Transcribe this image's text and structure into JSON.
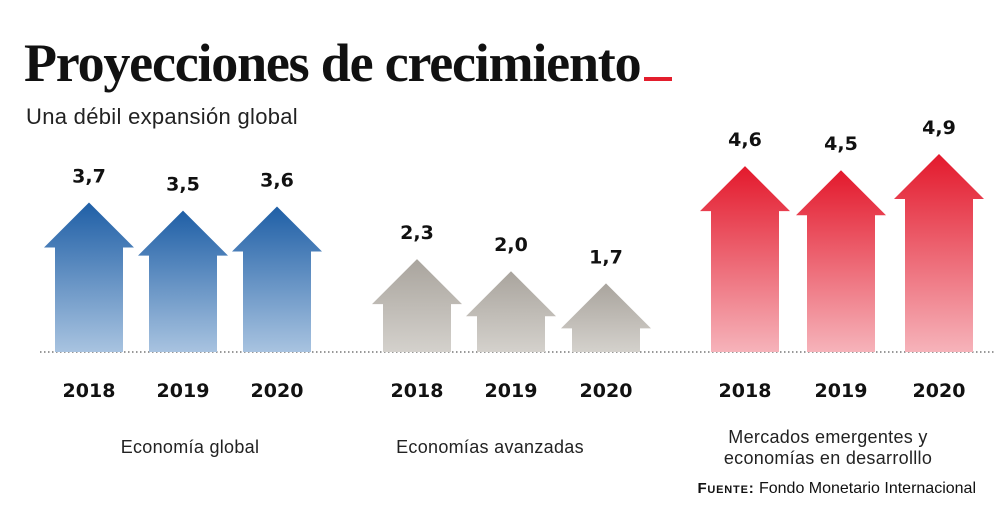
{
  "header": {
    "title": "Proyecciones de crecimiento",
    "subtitle": "Una débil expansión global"
  },
  "source": {
    "label": "Fuente:",
    "text": "Fondo Monetario Internacional"
  },
  "colors": {
    "accent": "#e31e2d",
    "blue_top": "#1f5fa6",
    "blue_bottom": "#a8c3e0",
    "gray_top": "#a9a49d",
    "gray_bottom": "#d4d1cc",
    "red_top": "#e3192c",
    "red_bottom": "#f6b3ba",
    "baseline": "#777777"
  },
  "chart_data": {
    "type": "bar",
    "title": "Proyecciones de crecimiento",
    "subtitle": "Una débil expansión global",
    "xlabel": "",
    "ylabel": "",
    "value_format": "decimal-comma",
    "categories": [
      "2018",
      "2019",
      "2020"
    ],
    "groups": [
      {
        "name": "Economía global",
        "color": "blue",
        "values": [
          3.7,
          3.5,
          3.6
        ],
        "labels": [
          "3,7",
          "3,5",
          "3,6"
        ]
      },
      {
        "name": "Economías avanzadas",
        "color": "gray",
        "values": [
          2.3,
          2.0,
          1.7
        ],
        "labels": [
          "2,3",
          "2,0",
          "1,7"
        ]
      },
      {
        "name": "Mercados emergentes y economías en desarrolllo",
        "name_lines": [
          "Mercados emergentes y",
          "economías en desarrolllo"
        ],
        "color": "red",
        "values": [
          4.6,
          4.5,
          4.9
        ],
        "labels": [
          "4,6",
          "4,5",
          "4,9"
        ]
      }
    ],
    "ylim": [
      0,
      4.9
    ],
    "grid": false,
    "legend": "none",
    "source": "Fuente: Fondo Monetario Internacional"
  }
}
